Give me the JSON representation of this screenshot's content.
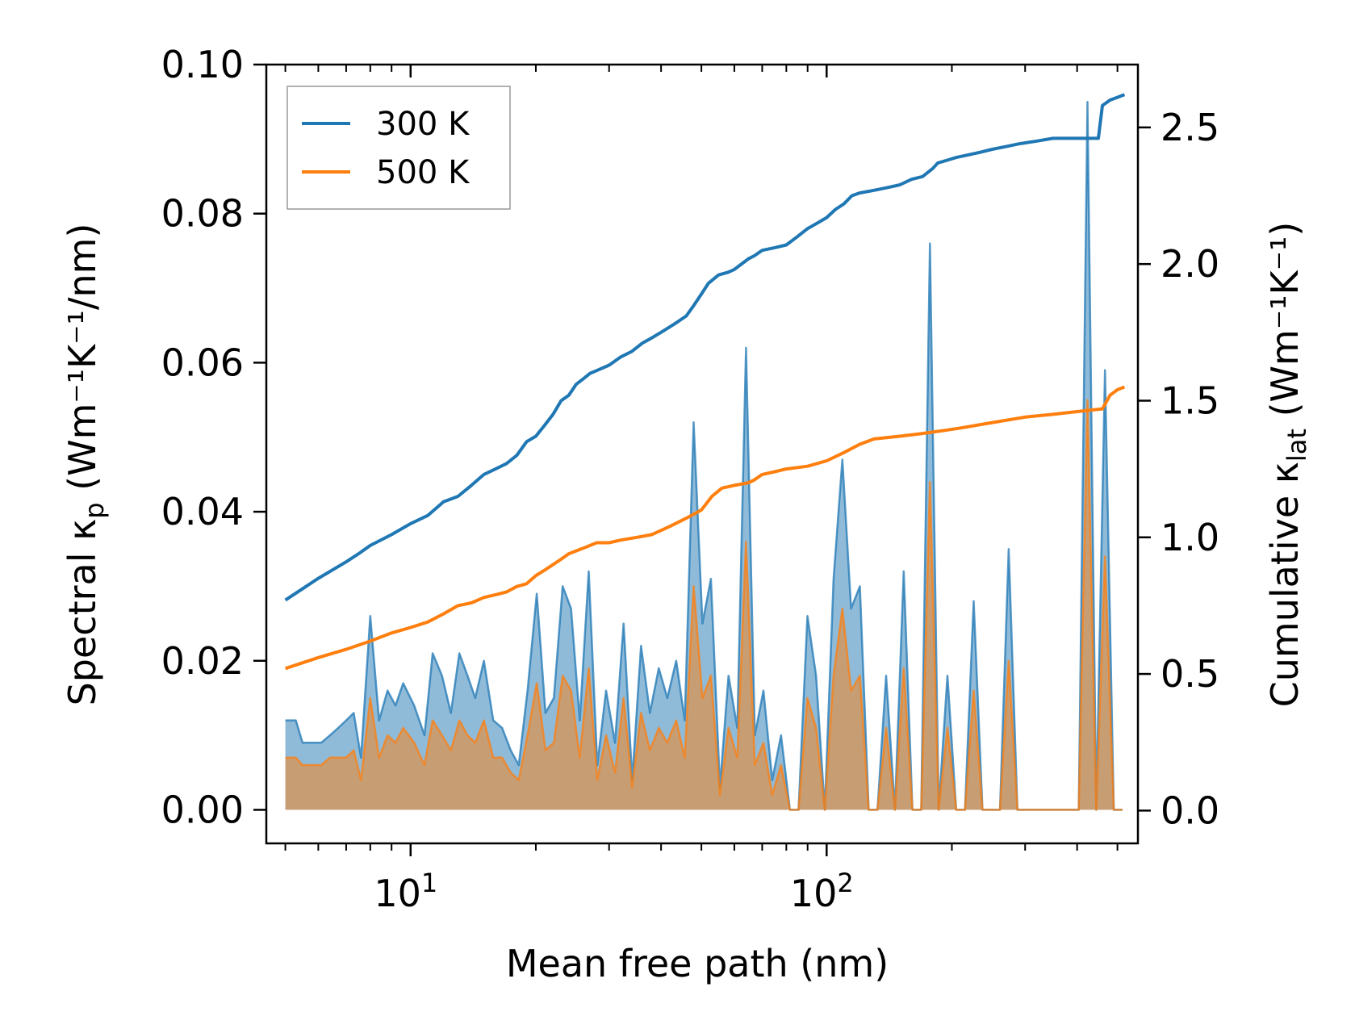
{
  "chart_data": {
    "type": "area",
    "title": "",
    "xlabel": "Mean free path (nm)",
    "xscale": "log",
    "xlim": [
      4.5,
      560
    ],
    "x_ticks": [
      {
        "value": 10,
        "base": "10",
        "exp": "1"
      },
      {
        "value": 100,
        "base": "10",
        "exp": "2"
      }
    ],
    "ylabel_left": {
      "main": "Spectral κ",
      "sub": "p",
      "unit": " (Wm⁻¹K⁻¹/nm)"
    },
    "ylim_left": [
      -0.0045,
      0.1
    ],
    "y_ticks_left": [
      "0.00",
      "0.02",
      "0.04",
      "0.06",
      "0.08",
      "0.10"
    ],
    "y_tick_values_left": [
      0,
      0.02,
      0.04,
      0.06,
      0.08,
      0.1
    ],
    "ylabel_right": {
      "main": "Cumulative κ",
      "sub": "lat",
      "unit": " (Wm⁻¹K⁻¹)"
    },
    "ylim_right": [
      -0.12,
      2.73
    ],
    "y_ticks_right": [
      "0.0",
      "0.5",
      "1.0",
      "1.5",
      "2.0",
      "2.5"
    ],
    "y_tick_values_right": [
      0,
      0.5,
      1.0,
      1.5,
      2.0,
      2.5
    ],
    "legend": {
      "position": "top-left",
      "entries": [
        "300 K",
        "500 K"
      ]
    },
    "colors": {
      "300K": "#1f77b4",
      "500K": "#ff7f0e"
    },
    "spectral": {
      "300K": {
        "x": [
          5.0,
          5.3,
          5.5,
          5.8,
          6.1,
          6.4,
          6.7,
          7.0,
          7.3,
          7.6,
          8.0,
          8.4,
          8.8,
          9.2,
          9.6,
          10.2,
          10.8,
          11.3,
          11.9,
          12.5,
          13.1,
          13.7,
          14.3,
          15.0,
          15.8,
          16.6,
          17.4,
          18.2,
          19.1,
          20.1,
          21.1,
          22.1,
          23.2,
          24.3,
          25.5,
          26.8,
          28.1,
          29.5,
          31.0,
          32.5,
          34.1,
          35.8,
          37.6,
          39.5,
          41.4,
          43.5,
          45.6,
          47.9,
          50.3,
          52.7,
          55.4,
          58.1,
          61.0,
          64.0,
          67.2,
          70.5,
          74.0,
          77.7,
          81.6,
          85.6,
          89.9,
          94.3,
          99.0,
          103.9,
          109.1,
          114.5,
          120.2,
          126.2,
          132.5,
          139.0,
          145.9,
          153.2,
          160.8,
          168.8,
          177.1,
          185.9,
          195.2,
          204.8,
          215.0,
          225.7,
          236.9,
          248.6,
          261.0,
          273.9,
          287.5,
          301.8,
          316.8,
          332.5,
          349.0,
          366.3,
          384.5,
          403.6,
          423.6,
          444.7,
          466.8,
          490.0,
          514.3
        ],
        "y": [
          0.012,
          0.012,
          0.009,
          0.009,
          0.009,
          0.01,
          0.011,
          0.012,
          0.013,
          0.007,
          0.026,
          0.012,
          0.016,
          0.014,
          0.017,
          0.014,
          0.01,
          0.021,
          0.018,
          0.013,
          0.021,
          0.018,
          0.015,
          0.02,
          0.012,
          0.011,
          0.008,
          0.006,
          0.016,
          0.029,
          0.013,
          0.015,
          0.03,
          0.027,
          0.012,
          0.032,
          0.006,
          0.016,
          0.009,
          0.025,
          0.004,
          0.022,
          0.013,
          0.019,
          0.015,
          0.02,
          0.012,
          0.052,
          0.025,
          0.031,
          0.003,
          0.018,
          0.011,
          0.062,
          0.01,
          0.016,
          0.004,
          0.01,
          0.0,
          0.0,
          0.026,
          0.018,
          0.0,
          0.031,
          0.047,
          0.027,
          0.03,
          0.0,
          0.0,
          0.018,
          0.0,
          0.032,
          0.0,
          0.0,
          0.076,
          0.0,
          0.018,
          0.0,
          0.0,
          0.028,
          0.0,
          0.0,
          0.0,
          0.035,
          0.0,
          0.0,
          0.0,
          0.0,
          0.0,
          0.0,
          0.0,
          0.0,
          0.095,
          0.0,
          0.059,
          0.0,
          0.0
        ]
      },
      "500K": {
        "x": [
          5.0,
          5.3,
          5.5,
          5.8,
          6.1,
          6.4,
          6.7,
          7.0,
          7.3,
          7.6,
          8.0,
          8.4,
          8.8,
          9.2,
          9.6,
          10.2,
          10.8,
          11.3,
          11.9,
          12.5,
          13.1,
          13.7,
          14.3,
          15.0,
          15.8,
          16.6,
          17.4,
          18.2,
          19.1,
          20.1,
          21.1,
          22.1,
          23.2,
          24.3,
          25.5,
          26.8,
          28.1,
          29.5,
          31.0,
          32.5,
          34.1,
          35.8,
          37.6,
          39.5,
          41.4,
          43.5,
          45.6,
          47.9,
          50.3,
          52.7,
          55.4,
          58.1,
          61.0,
          64.0,
          67.2,
          70.5,
          74.0,
          77.7,
          81.6,
          85.6,
          89.9,
          94.3,
          99.0,
          103.9,
          109.1,
          114.5,
          120.2,
          126.2,
          132.5,
          139.0,
          145.9,
          153.2,
          160.8,
          168.8,
          177.1,
          185.9,
          195.2,
          204.8,
          215.0,
          225.7,
          236.9,
          248.6,
          261.0,
          273.9,
          287.5,
          301.8,
          316.8,
          332.5,
          349.0,
          366.3,
          384.5,
          403.6,
          423.6,
          444.7,
          466.8,
          490.0,
          514.3
        ],
        "y": [
          0.007,
          0.007,
          0.006,
          0.006,
          0.006,
          0.007,
          0.007,
          0.007,
          0.008,
          0.004,
          0.015,
          0.007,
          0.01,
          0.009,
          0.011,
          0.009,
          0.006,
          0.012,
          0.01,
          0.008,
          0.012,
          0.01,
          0.009,
          0.012,
          0.007,
          0.007,
          0.005,
          0.004,
          0.01,
          0.017,
          0.008,
          0.009,
          0.018,
          0.016,
          0.007,
          0.019,
          0.004,
          0.01,
          0.005,
          0.015,
          0.003,
          0.013,
          0.008,
          0.011,
          0.009,
          0.012,
          0.007,
          0.03,
          0.015,
          0.018,
          0.002,
          0.011,
          0.007,
          0.036,
          0.006,
          0.009,
          0.002,
          0.006,
          0.0,
          0.0,
          0.015,
          0.011,
          0.0,
          0.018,
          0.027,
          0.016,
          0.018,
          0.0,
          0.0,
          0.011,
          0.0,
          0.019,
          0.0,
          0.0,
          0.044,
          0.0,
          0.011,
          0.0,
          0.0,
          0.016,
          0.0,
          0.0,
          0.0,
          0.02,
          0.0,
          0.0,
          0.0,
          0.0,
          0.0,
          0.0,
          0.0,
          0.0,
          0.055,
          0.0,
          0.034,
          0.0,
          0.0
        ]
      }
    },
    "cumulative": {
      "300K": {
        "x": [
          5.0,
          6.0,
          7.0,
          7.5,
          8.0,
          9.0,
          10.0,
          11.0,
          12.0,
          13.0,
          14.0,
          15.0,
          16.0,
          17.0,
          18.0,
          19.0,
          20.0,
          21.0,
          22.0,
          23.0,
          24.0,
          25.0,
          26.0,
          27.0,
          28.0,
          30.0,
          32.0,
          34.0,
          36.0,
          38.0,
          40.0,
          43.0,
          46.0,
          48.0,
          50.0,
          52.0,
          55.0,
          58.0,
          60.0,
          65.0,
          67.0,
          70.0,
          75.0,
          80.0,
          85.0,
          90.0,
          95.0,
          100.0,
          105.0,
          110.0,
          115.0,
          120.0,
          130.0,
          140.0,
          150.0,
          160.0,
          170.0,
          180.0,
          185.0,
          195.0,
          205.0,
          220.0,
          235.0,
          250.0,
          270.0,
          290.0,
          320.0,
          350.0,
          400.0,
          450.0,
          460.0,
          480.0,
          500.0,
          520.0
        ],
        "y": [
          0.77,
          0.85,
          0.91,
          0.94,
          0.97,
          1.01,
          1.05,
          1.08,
          1.13,
          1.15,
          1.19,
          1.23,
          1.25,
          1.27,
          1.3,
          1.35,
          1.37,
          1.41,
          1.45,
          1.5,
          1.52,
          1.56,
          1.58,
          1.6,
          1.61,
          1.63,
          1.66,
          1.68,
          1.71,
          1.73,
          1.75,
          1.78,
          1.81,
          1.85,
          1.89,
          1.93,
          1.96,
          1.97,
          1.98,
          2.02,
          2.03,
          2.05,
          2.06,
          2.07,
          2.1,
          2.13,
          2.15,
          2.17,
          2.2,
          2.22,
          2.25,
          2.26,
          2.27,
          2.28,
          2.29,
          2.31,
          2.32,
          2.35,
          2.37,
          2.38,
          2.39,
          2.4,
          2.41,
          2.42,
          2.43,
          2.44,
          2.45,
          2.46,
          2.46,
          2.46,
          2.58,
          2.6,
          2.61,
          2.62
        ]
      },
      "500K": {
        "x": [
          5.0,
          6.0,
          7.0,
          8.0,
          9.0,
          10.0,
          11.0,
          12.0,
          13.0,
          14.0,
          15.0,
          16.0,
          17.0,
          18.0,
          19.0,
          20.0,
          21.0,
          22.0,
          23.0,
          24.0,
          26.0,
          28.0,
          30.0,
          32.0,
          35.0,
          38.0,
          42.0,
          46.0,
          50.0,
          53.0,
          56.0,
          60.0,
          65.0,
          67.0,
          70.0,
          75.0,
          80.0,
          90.0,
          100.0,
          110.0,
          120.0,
          130.0,
          150.0,
          170.0,
          190.0,
          210.0,
          250.0,
          300.0,
          350.0,
          400.0,
          460.0,
          480.0,
          500.0,
          520.0
        ],
        "y": [
          0.52,
          0.56,
          0.59,
          0.62,
          0.65,
          0.67,
          0.69,
          0.72,
          0.75,
          0.76,
          0.78,
          0.79,
          0.8,
          0.82,
          0.83,
          0.86,
          0.88,
          0.9,
          0.92,
          0.94,
          0.96,
          0.98,
          0.98,
          0.99,
          1.0,
          1.01,
          1.04,
          1.07,
          1.1,
          1.15,
          1.18,
          1.19,
          1.2,
          1.21,
          1.23,
          1.24,
          1.25,
          1.26,
          1.28,
          1.31,
          1.34,
          1.36,
          1.37,
          1.38,
          1.39,
          1.4,
          1.42,
          1.44,
          1.45,
          1.46,
          1.47,
          1.52,
          1.54,
          1.55
        ]
      }
    }
  }
}
